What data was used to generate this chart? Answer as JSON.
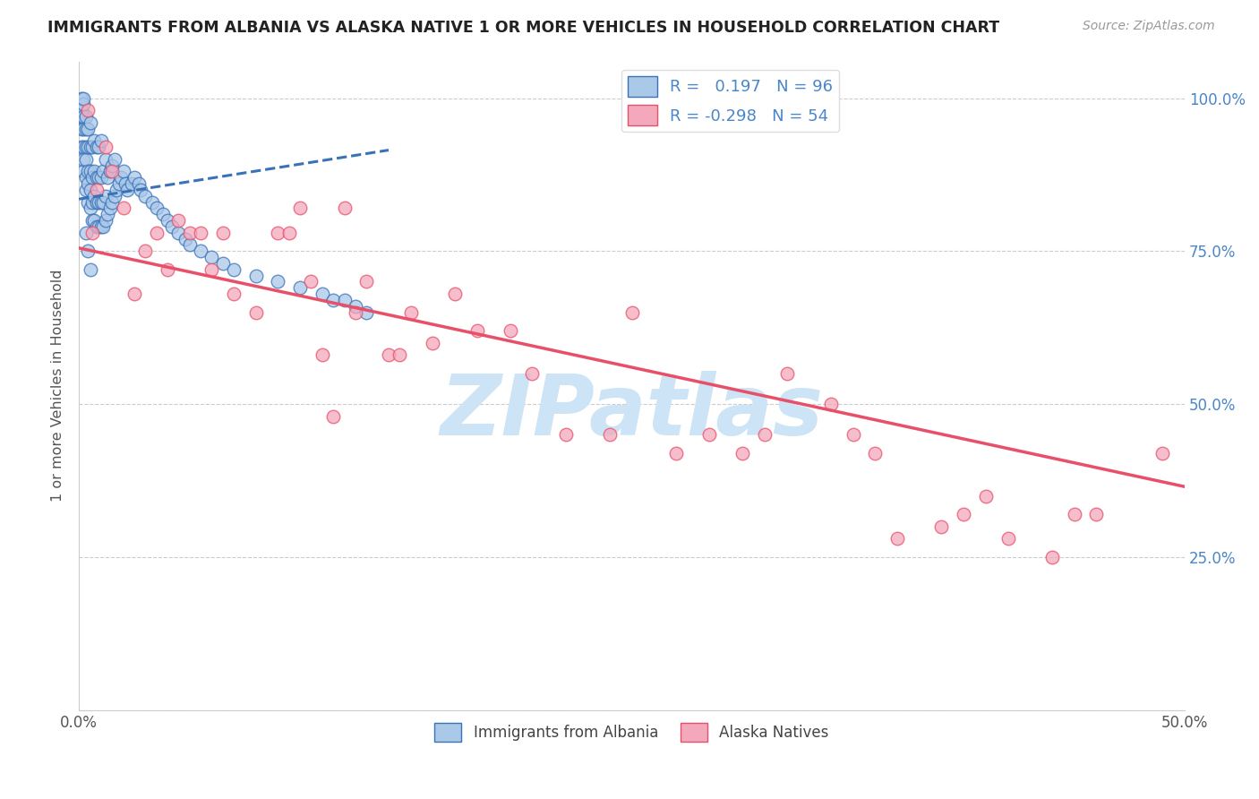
{
  "title": "IMMIGRANTS FROM ALBANIA VS ALASKA NATIVE 1 OR MORE VEHICLES IN HOUSEHOLD CORRELATION CHART",
  "source": "Source: ZipAtlas.com",
  "ylabel": "1 or more Vehicles in Household",
  "r_albania": 0.197,
  "n_albania": 96,
  "r_alaska": -0.298,
  "n_alaska": 54,
  "color_albania": "#aac8e8",
  "color_alaska": "#f4a8bc",
  "line_color_albania": "#3a72b8",
  "line_color_alaska": "#e8506a",
  "watermark": "ZIPatlas",
  "watermark_color": "#cce4f5",
  "xmin": 0.0,
  "xmax": 0.5,
  "ymin": 0.0,
  "ymax": 1.06,
  "albania_line_x0": 0.0,
  "albania_line_x1": 0.14,
  "albania_line_y0": 0.835,
  "albania_line_y1": 0.915,
  "alaska_line_x0": 0.0,
  "alaska_line_x1": 0.5,
  "alaska_line_y0": 0.755,
  "alaska_line_y1": 0.365,
  "albania_x": [
    0.001,
    0.001,
    0.001,
    0.001,
    0.001,
    0.002,
    0.002,
    0.002,
    0.002,
    0.002,
    0.002,
    0.002,
    0.003,
    0.003,
    0.003,
    0.003,
    0.003,
    0.003,
    0.004,
    0.004,
    0.004,
    0.004,
    0.004,
    0.005,
    0.005,
    0.005,
    0.005,
    0.005,
    0.006,
    0.006,
    0.006,
    0.006,
    0.007,
    0.007,
    0.007,
    0.007,
    0.008,
    0.008,
    0.008,
    0.008,
    0.009,
    0.009,
    0.009,
    0.009,
    0.01,
    0.01,
    0.01,
    0.01,
    0.011,
    0.011,
    0.011,
    0.012,
    0.012,
    0.012,
    0.013,
    0.013,
    0.014,
    0.014,
    0.015,
    0.015,
    0.016,
    0.016,
    0.017,
    0.018,
    0.019,
    0.02,
    0.021,
    0.022,
    0.024,
    0.025,
    0.027,
    0.028,
    0.03,
    0.033,
    0.035,
    0.038,
    0.04,
    0.042,
    0.045,
    0.048,
    0.05,
    0.055,
    0.06,
    0.065,
    0.07,
    0.08,
    0.09,
    0.1,
    0.11,
    0.115,
    0.12,
    0.125,
    0.13,
    0.003,
    0.004,
    0.005
  ],
  "albania_y": [
    0.92,
    0.95,
    0.97,
    0.98,
    1.0,
    0.88,
    0.9,
    0.92,
    0.95,
    0.97,
    0.99,
    1.0,
    0.85,
    0.87,
    0.9,
    0.92,
    0.95,
    0.97,
    0.83,
    0.86,
    0.88,
    0.92,
    0.95,
    0.82,
    0.85,
    0.88,
    0.92,
    0.96,
    0.8,
    0.83,
    0.87,
    0.92,
    0.8,
    0.84,
    0.88,
    0.93,
    0.79,
    0.83,
    0.87,
    0.92,
    0.79,
    0.83,
    0.87,
    0.92,
    0.79,
    0.83,
    0.87,
    0.93,
    0.79,
    0.83,
    0.88,
    0.8,
    0.84,
    0.9,
    0.81,
    0.87,
    0.82,
    0.88,
    0.83,
    0.89,
    0.84,
    0.9,
    0.85,
    0.86,
    0.87,
    0.88,
    0.86,
    0.85,
    0.86,
    0.87,
    0.86,
    0.85,
    0.84,
    0.83,
    0.82,
    0.81,
    0.8,
    0.79,
    0.78,
    0.77,
    0.76,
    0.75,
    0.74,
    0.73,
    0.72,
    0.71,
    0.7,
    0.69,
    0.68,
    0.67,
    0.67,
    0.66,
    0.65,
    0.78,
    0.75,
    0.72
  ],
  "alaska_x": [
    0.004,
    0.006,
    0.008,
    0.012,
    0.015,
    0.02,
    0.025,
    0.03,
    0.035,
    0.04,
    0.045,
    0.05,
    0.055,
    0.06,
    0.065,
    0.07,
    0.08,
    0.09,
    0.095,
    0.1,
    0.105,
    0.11,
    0.115,
    0.12,
    0.125,
    0.13,
    0.14,
    0.145,
    0.15,
    0.16,
    0.17,
    0.18,
    0.195,
    0.205,
    0.22,
    0.24,
    0.25,
    0.27,
    0.285,
    0.3,
    0.31,
    0.32,
    0.34,
    0.35,
    0.36,
    0.37,
    0.39,
    0.4,
    0.41,
    0.42,
    0.44,
    0.45,
    0.46,
    0.49
  ],
  "alaska_y": [
    0.98,
    0.78,
    0.85,
    0.92,
    0.88,
    0.82,
    0.68,
    0.75,
    0.78,
    0.72,
    0.8,
    0.78,
    0.78,
    0.72,
    0.78,
    0.68,
    0.65,
    0.78,
    0.78,
    0.82,
    0.7,
    0.58,
    0.48,
    0.82,
    0.65,
    0.7,
    0.58,
    0.58,
    0.65,
    0.6,
    0.68,
    0.62,
    0.62,
    0.55,
    0.45,
    0.45,
    0.65,
    0.42,
    0.45,
    0.42,
    0.45,
    0.55,
    0.5,
    0.45,
    0.42,
    0.28,
    0.3,
    0.32,
    0.35,
    0.28,
    0.25,
    0.32,
    0.32,
    0.42
  ]
}
